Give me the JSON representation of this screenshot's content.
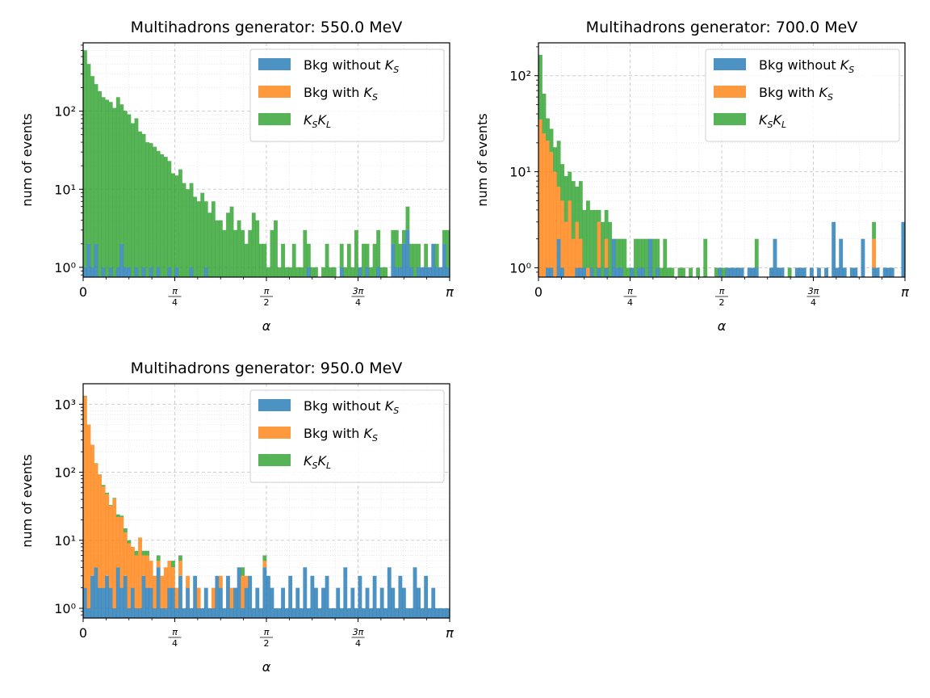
{
  "colors": {
    "bkg_without_ks": "#1f77b4",
    "bkg_with_ks": "#ff7f0e",
    "ksk_l": "#2ca02c"
  },
  "chart_data": [
    {
      "type": "bar",
      "histtype": "stacked",
      "yscale": "log",
      "title": "Multihadrons generator: 550.0 MeV",
      "xlabel": "α",
      "ylabel": "num of events",
      "xlim": [
        0,
        3.14159
      ],
      "ylim": [
        0.75,
        750
      ],
      "xticks": [
        {
          "value": 0,
          "label": "0"
        },
        {
          "value": 0.7854,
          "label": "π/4"
        },
        {
          "value": 1.5708,
          "label": "π/2"
        },
        {
          "value": 2.3562,
          "label": "3π/4"
        },
        {
          "value": 3.14159,
          "label": "π"
        }
      ],
      "yticks": [
        {
          "value": 1,
          "label": "10⁰"
        },
        {
          "value": 10,
          "label": "10¹"
        },
        {
          "value": 100,
          "label": "10²"
        }
      ],
      "grid": true,
      "legend": "upper right",
      "bins": 100,
      "series": [
        {
          "name": "Bkg without K_S",
          "values": [
            1,
            2,
            1,
            2,
            0,
            1,
            0,
            1,
            0,
            1,
            2,
            1,
            1,
            0,
            1,
            0,
            1,
            0,
            1,
            0,
            1,
            0,
            0,
            1,
            0,
            1,
            0,
            0,
            0,
            1,
            0,
            0,
            0,
            1,
            0,
            0,
            0,
            0,
            0,
            0,
            0,
            0,
            0,
            0,
            0,
            0,
            0,
            0,
            0,
            0,
            0,
            0,
            0,
            0,
            0,
            0,
            0,
            0,
            0,
            0,
            0,
            1,
            0,
            0,
            0,
            0,
            0,
            0,
            0,
            0,
            1,
            0,
            0,
            0,
            0,
            1,
            0,
            1,
            0,
            0,
            1,
            0,
            0,
            0,
            2,
            1,
            1,
            2,
            3,
            1,
            0,
            1,
            1,
            1,
            1,
            2,
            1,
            1,
            2,
            1
          ]
        },
        {
          "name": "Bkg with K_S",
          "values": [
            0,
            0,
            0,
            0,
            0,
            0,
            0,
            0,
            0,
            0,
            0,
            0,
            0,
            0,
            0,
            0,
            0,
            0,
            0,
            0,
            0,
            0,
            0,
            0,
            0,
            0,
            0,
            0,
            0,
            0,
            0,
            0,
            0,
            0,
            0,
            0,
            0,
            0,
            0,
            0,
            0,
            0,
            0,
            0,
            0,
            0,
            0,
            0,
            0,
            0,
            0,
            0,
            0,
            0,
            0,
            0,
            0,
            0,
            0,
            0,
            0,
            0,
            0,
            0,
            0,
            0,
            0,
            0,
            0,
            0,
            0,
            0,
            0,
            0,
            0,
            0,
            0,
            0,
            0,
            0,
            0,
            0,
            0,
            0,
            0,
            0,
            0,
            0,
            0,
            0,
            0,
            0,
            0,
            0,
            0,
            0,
            0,
            0,
            0,
            0
          ]
        },
        {
          "name": "K_SK_L",
          "values": [
            600,
            400,
            280,
            220,
            180,
            150,
            140,
            130,
            110,
            150,
            120,
            100,
            90,
            70,
            80,
            55,
            50,
            40,
            38,
            35,
            30,
            28,
            26,
            22,
            16,
            14,
            18,
            12,
            10,
            11,
            8,
            7,
            9,
            6,
            5,
            7,
            4,
            4,
            3,
            5,
            6,
            3,
            4,
            3,
            2,
            3,
            5,
            4,
            2,
            2,
            1,
            3,
            4,
            1,
            2,
            1,
            1,
            2,
            1,
            1,
            3,
            1,
            1,
            1,
            0,
            1,
            2,
            1,
            1,
            0,
            1,
            1,
            2,
            1,
            3,
            0,
            2,
            1,
            1,
            2,
            2,
            1,
            1,
            0,
            1,
            2,
            1,
            1,
            3,
            1,
            2,
            1,
            0,
            1,
            0,
            0,
            1,
            0,
            1,
            2
          ]
        }
      ]
    },
    {
      "type": "bar",
      "histtype": "stacked",
      "yscale": "log",
      "title": "Multihadrons generator: 700.0 MeV",
      "xlabel": "α",
      "ylabel": "num of events",
      "xlim": [
        0,
        3.14159
      ],
      "ylim": [
        0.8,
        220
      ],
      "xticks": [
        {
          "value": 0,
          "label": "0"
        },
        {
          "value": 0.7854,
          "label": "π/4"
        },
        {
          "value": 1.5708,
          "label": "π/2"
        },
        {
          "value": 2.3562,
          "label": "3π/4"
        },
        {
          "value": 3.14159,
          "label": "π"
        }
      ],
      "yticks": [
        {
          "value": 1,
          "label": "10⁰"
        },
        {
          "value": 10,
          "label": "10¹"
        },
        {
          "value": 100,
          "label": "10²"
        }
      ],
      "grid": true,
      "legend": "upper right",
      "bins": 100,
      "series": [
        {
          "name": "Bkg without K_S",
          "values": [
            0,
            0,
            1,
            1,
            0,
            2,
            1,
            0,
            0,
            0,
            1,
            1,
            1,
            0,
            1,
            0,
            1,
            0,
            1,
            0,
            2,
            1,
            1,
            0,
            0,
            1,
            0,
            1,
            1,
            0,
            2,
            0,
            1,
            0,
            0,
            0,
            0,
            0,
            0,
            0,
            0,
            0,
            0,
            0,
            0,
            0,
            0,
            0,
            0,
            1,
            0,
            1,
            1,
            1,
            1,
            1,
            0,
            1,
            1,
            1,
            0,
            0,
            0,
            1,
            2,
            1,
            1,
            0,
            0,
            0,
            1,
            1,
            1,
            0,
            1,
            0,
            1,
            0,
            1,
            0,
            3,
            1,
            2,
            1,
            0,
            1,
            1,
            0,
            2,
            0,
            0,
            1,
            1,
            0,
            1,
            1,
            1,
            0,
            0,
            3
          ]
        },
        {
          "name": "Bkg with K_S",
          "values": [
            35,
            25,
            20,
            15,
            10,
            5,
            4,
            3,
            5,
            2,
            2,
            1,
            0,
            1,
            0,
            0,
            2,
            0,
            1,
            0,
            0,
            0,
            0,
            0,
            0,
            0,
            0,
            0,
            0,
            0,
            0,
            0,
            0,
            0,
            0,
            0,
            0,
            0,
            0,
            0,
            0,
            0,
            0,
            0,
            0,
            0,
            0,
            0,
            0,
            0,
            0,
            0,
            0,
            0,
            0,
            0,
            0,
            0,
            0,
            0,
            0,
            0,
            0,
            0,
            0,
            0,
            0,
            0,
            0,
            0,
            0,
            0,
            0,
            0,
            0,
            0,
            0,
            0,
            0,
            0,
            0,
            0,
            0,
            0,
            0,
            0,
            0,
            0,
            0,
            0,
            0,
            1,
            0,
            0,
            0,
            0,
            0,
            0,
            0,
            0
          ]
        },
        {
          "name": "K_SK_L",
          "values": [
            130,
            40,
            15,
            12,
            8,
            14,
            7,
            6,
            5,
            6,
            4,
            6,
            3,
            4,
            3,
            4,
            1,
            3,
            2,
            3,
            0,
            1,
            1,
            2,
            1,
            0,
            2,
            1,
            1,
            2,
            0,
            2,
            1,
            1,
            2,
            1,
            1,
            0,
            1,
            1,
            0,
            1,
            0,
            1,
            0,
            2,
            0,
            0,
            1,
            0,
            1,
            0,
            0,
            0,
            0,
            0,
            0,
            0,
            0,
            1,
            0,
            0,
            0,
            0,
            0,
            0,
            0,
            0,
            1,
            0,
            0,
            0,
            0,
            0,
            0,
            0,
            0,
            0,
            0,
            0,
            0,
            0,
            0,
            0,
            0,
            0,
            0,
            0,
            0,
            0,
            0,
            1,
            0,
            0,
            0,
            0,
            0,
            0,
            0,
            0
          ]
        }
      ]
    },
    {
      "type": "bar",
      "histtype": "stacked",
      "yscale": "log",
      "title": "Multihadrons generator: 950.0 MeV",
      "xlabel": "α",
      "ylabel": "num of events",
      "xlim": [
        0,
        3.14159
      ],
      "ylim": [
        0.72,
        2000
      ],
      "xticks": [
        {
          "value": 0,
          "label": "0"
        },
        {
          "value": 0.7854,
          "label": "π/4"
        },
        {
          "value": 1.5708,
          "label": "π/2"
        },
        {
          "value": 2.3562,
          "label": "3π/4"
        },
        {
          "value": 3.14159,
          "label": "π"
        }
      ],
      "yticks": [
        {
          "value": 1,
          "label": "10⁰"
        },
        {
          "value": 10,
          "label": "10¹"
        },
        {
          "value": 100,
          "label": "10²"
        },
        {
          "value": 1000,
          "label": "10³"
        }
      ],
      "grid": true,
      "legend": "upper right",
      "bins": 100,
      "series": [
        {
          "name": "Bkg without K_S",
          "values": [
            2,
            1,
            3,
            4,
            2,
            2,
            3,
            2,
            1,
            4,
            2,
            3,
            1,
            2,
            1,
            1,
            3,
            2,
            2,
            1,
            4,
            1,
            1,
            2,
            2,
            1,
            3,
            1,
            2,
            1,
            3,
            1,
            1,
            2,
            1,
            1,
            3,
            2,
            1,
            3,
            1,
            2,
            4,
            1,
            2,
            3,
            1,
            2,
            1,
            4,
            3,
            2,
            1,
            1,
            2,
            1,
            3,
            1,
            2,
            1,
            4,
            1,
            3,
            2,
            1,
            2,
            3,
            1,
            1,
            2,
            1,
            4,
            1,
            2,
            1,
            3,
            1,
            2,
            1,
            3,
            1,
            2,
            1,
            4,
            2,
            1,
            3,
            2,
            1,
            1,
            4,
            2,
            1,
            3,
            1,
            2,
            1,
            1,
            1,
            1
          ]
        },
        {
          "name": "Bkg with K_S",
          "values": [
            1300,
            500,
            250,
            130,
            90,
            60,
            45,
            30,
            40,
            18,
            20,
            10,
            8,
            6,
            5,
            10,
            3,
            4,
            3,
            2,
            1,
            2,
            3,
            3,
            2,
            1,
            2,
            0,
            1,
            0,
            0,
            1,
            0,
            0,
            0,
            1,
            0,
            1,
            0,
            0,
            1,
            0,
            0,
            2,
            1,
            0,
            0,
            0,
            0,
            1,
            0,
            0,
            0,
            0,
            0,
            0,
            0,
            0,
            0,
            0,
            0,
            0,
            0,
            0,
            0,
            0,
            0,
            0,
            0,
            0,
            0,
            0,
            0,
            0,
            0,
            0,
            0,
            0,
            0,
            0,
            0,
            0,
            0,
            0,
            0,
            0,
            0,
            0,
            0,
            0,
            0,
            0,
            0,
            0,
            0,
            0,
            0,
            0,
            0,
            0
          ]
        },
        {
          "name": "K_SK_L",
          "values": [
            30,
            2,
            1,
            2,
            1,
            3,
            2,
            1,
            1,
            2,
            1,
            2,
            1,
            0,
            1,
            0,
            1,
            1,
            0,
            0,
            1,
            0,
            0,
            0,
            1,
            0,
            1,
            0,
            0,
            0,
            0,
            0,
            0,
            0,
            0,
            0,
            0,
            0,
            0,
            0,
            0,
            0,
            0,
            1,
            0,
            0,
            0,
            0,
            0,
            1,
            0,
            0,
            0,
            0,
            0,
            0,
            0,
            0,
            0,
            0,
            0,
            0,
            0,
            0,
            0,
            0,
            0,
            0,
            0,
            0,
            0,
            0,
            0,
            0,
            0,
            0,
            0,
            0,
            0,
            0,
            0,
            0,
            0,
            0,
            0,
            0,
            0,
            0,
            0,
            0,
            0,
            0,
            0,
            0,
            0,
            0,
            0,
            0,
            0,
            0
          ]
        }
      ]
    }
  ]
}
